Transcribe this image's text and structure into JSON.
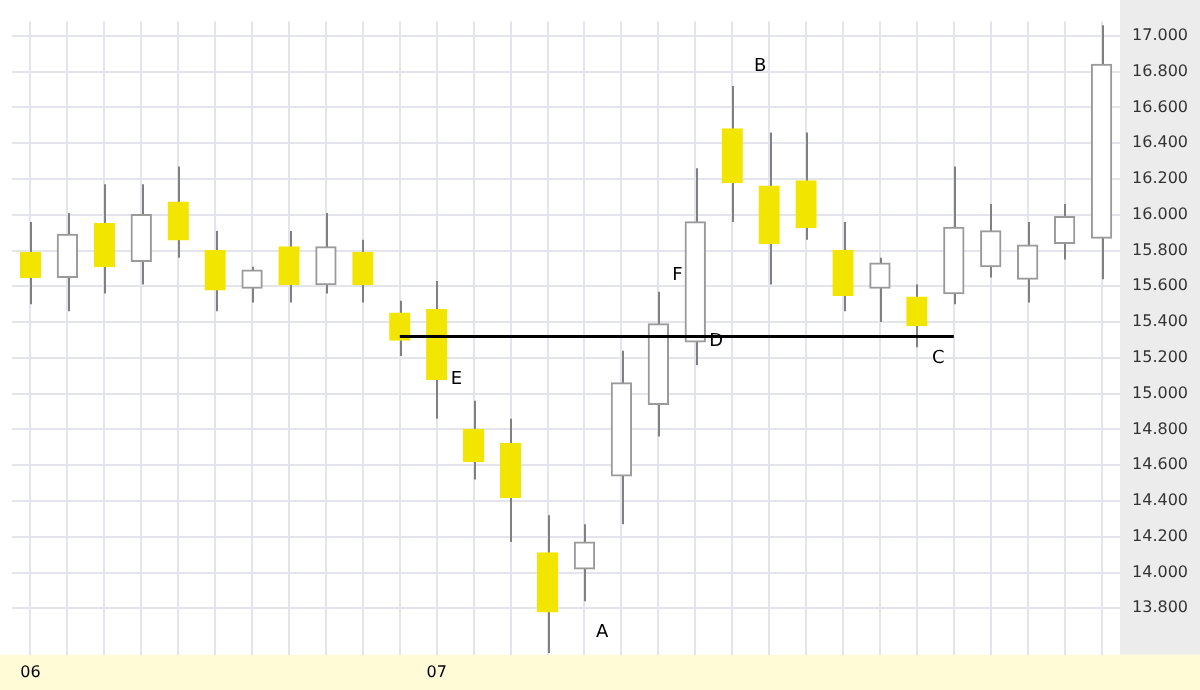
{
  "chart_data": {
    "type": "candlestick",
    "categories": [
      "06",
      null,
      null,
      null,
      null,
      null,
      null,
      null,
      null,
      null,
      null,
      "07",
      null,
      null,
      null,
      null,
      null,
      null,
      null,
      null,
      null,
      null,
      null,
      null,
      null,
      null,
      null,
      null,
      null,
      null
    ],
    "ohlc": [
      [
        15790,
        15960,
        15500,
        15650
      ],
      [
        15650,
        16010,
        15460,
        15890
      ],
      [
        15950,
        16170,
        15560,
        15710
      ],
      [
        15740,
        16170,
        15610,
        16000
      ],
      [
        16070,
        16270,
        15760,
        15860
      ],
      [
        15800,
        15910,
        15460,
        15580
      ],
      [
        15590,
        15710,
        15510,
        15690
      ],
      [
        15820,
        15910,
        15510,
        15610
      ],
      [
        15610,
        16010,
        15560,
        15820
      ],
      [
        15790,
        15860,
        15510,
        15610
      ],
      [
        15450,
        15520,
        15210,
        15300
      ],
      [
        15470,
        15630,
        14860,
        15080
      ],
      [
        14800,
        14960,
        14520,
        14620
      ],
      [
        14720,
        14860,
        14170,
        14420
      ],
      [
        14110,
        14320,
        13550,
        13780
      ],
      [
        14020,
        14270,
        13840,
        14170
      ],
      [
        14540,
        15240,
        14270,
        15060
      ],
      [
        14940,
        15570,
        14760,
        15390
      ],
      [
        15290,
        16260,
        15160,
        15960
      ],
      [
        16480,
        16720,
        15960,
        16180
      ],
      [
        16160,
        16460,
        15610,
        15840
      ],
      [
        16190,
        16460,
        15860,
        15930
      ],
      [
        15800,
        15960,
        15460,
        15550
      ],
      [
        15590,
        15760,
        15400,
        15730
      ],
      [
        15540,
        15610,
        15260,
        15380
      ],
      [
        15560,
        16270,
        15500,
        15930
      ],
      [
        15710,
        16060,
        15650,
        15910
      ],
      [
        15640,
        15960,
        15510,
        15830
      ],
      [
        15840,
        16060,
        15750,
        15990
      ],
      [
        15870,
        17060,
        15640,
        16840
      ]
    ],
    "colors": [
      "#f2e600",
      "#9a9a9a",
      "#f2e600",
      "#9a9a9a",
      "#f2e600",
      "#f2e600",
      "#9a9a9a",
      "#f2e600",
      "#9a9a9a",
      "#f2e600",
      "#f2e600",
      "#f2e600",
      "#f2e600",
      "#f2e600",
      "#f2e600",
      "#9a9a9a",
      "#9a9a9a",
      "#9a9a9a",
      "#9a9a9a",
      "#f2e600",
      "#f2e600",
      "#f2e600",
      "#f2e600",
      "#9a9a9a",
      "#f2e600",
      "#9a9a9a",
      "#9a9a9a",
      "#9a9a9a",
      "#9a9a9a",
      "#9a9a9a"
    ],
    "series": [
      {
        "type": "line",
        "color": "#000000",
        "values": [
          null,
          null,
          null,
          null,
          null,
          null,
          null,
          null,
          null,
          null,
          15320,
          15320,
          15320,
          15320,
          15320,
          15320,
          15320,
          15320,
          15320,
          15320,
          15320,
          15320,
          15320,
          15320,
          15320,
          15320,
          null,
          null,
          null,
          null
        ]
      }
    ],
    "annotations": [
      "A",
      "B",
      "C",
      {
        "text": "D",
        "y": 15290
      },
      {
        "text": "E",
        "y": 15080
      },
      {
        "text": "F",
        "y": 15570
      }
    ],
    "ylim": [
      13540,
      17080
    ],
    "yticks": [
      {
        "value": 13800,
        "label": "13.800"
      },
      {
        "value": 14000,
        "label": "14.000"
      },
      {
        "value": 14200,
        "label": "14.200"
      },
      {
        "value": 14400,
        "label": "14.400"
      },
      {
        "value": 14600,
        "label": "14.600"
      },
      {
        "value": 14800,
        "label": "14.800"
      },
      {
        "value": 15000,
        "label": "15.000"
      },
      {
        "value": 15200,
        "label": "15.200"
      },
      {
        "value": 15400,
        "label": "15.400"
      },
      {
        "value": 15600,
        "label": "15.600"
      },
      {
        "value": 15800,
        "label": "15.800"
      },
      {
        "value": 16000,
        "label": "16.000"
      },
      {
        "value": 16200,
        "label": "16.200"
      },
      {
        "value": 16400,
        "label": "16.400"
      },
      {
        "value": 16600,
        "label": "16.600"
      },
      {
        "value": 16800,
        "label": "16.800"
      },
      {
        "value": 17000,
        "label": "17.000"
      }
    ],
    "grid": true,
    "legend": false
  }
}
